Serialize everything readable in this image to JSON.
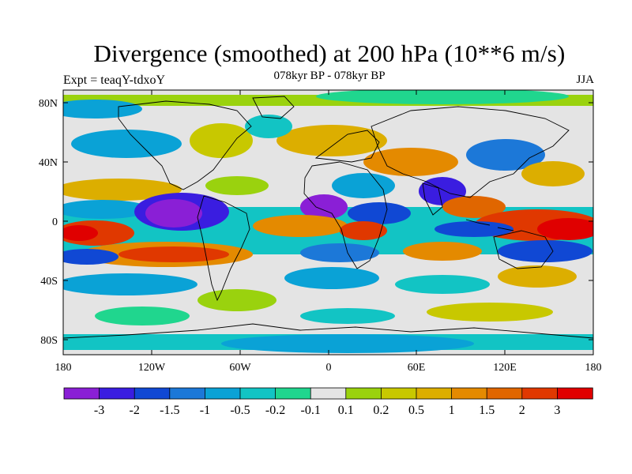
{
  "header": {
    "title": "Divergence (smoothed) at 200 hPa (10**6 m/s)",
    "subtitle": "078kyr BP - 078kyr BP",
    "left_label": "Expt = teaqY-tdxoY",
    "season": "JJA"
  },
  "map": {
    "lat_ticks": [
      "80N",
      "40N",
      "0",
      "40S",
      "80S"
    ],
    "lon_ticks": [
      "180",
      "120W",
      "60W",
      "0",
      "60E",
      "120E",
      "180"
    ]
  },
  "colorbar": {
    "colors": [
      "#8a1fd6",
      "#3a1de0",
      "#1048d4",
      "#1c78d8",
      "#0aa2d6",
      "#12c4c4",
      "#20d68e",
      "#e4e4e4",
      "#9ad20e",
      "#c8c800",
      "#dcae00",
      "#e48a00",
      "#e06600",
      "#e03800",
      "#e00000"
    ],
    "labels": [
      "-3",
      "-2",
      "-1.5",
      "-1",
      "-0.5",
      "-0.2",
      "-0.1",
      "0.1",
      "0.2",
      "0.5",
      "1",
      "1.5",
      "2",
      "3"
    ]
  }
}
